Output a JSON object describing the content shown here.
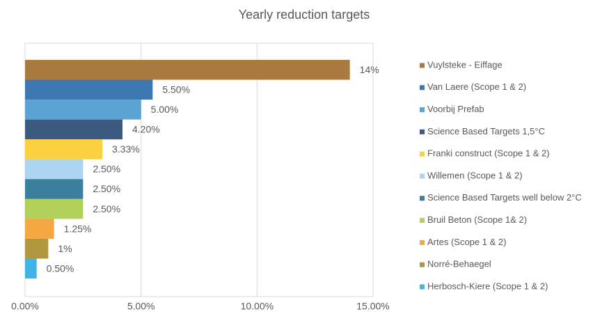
{
  "chart_data": {
    "type": "bar",
    "orientation": "horizontal",
    "title": "Yearly reduction targets",
    "xlim": [
      0,
      15
    ],
    "xticks": [
      {
        "value": 0,
        "label": "0.00%"
      },
      {
        "value": 5,
        "label": "5.00%"
      },
      {
        "value": 10,
        "label": "10.00%"
      },
      {
        "value": 15,
        "label": "15.00%"
      }
    ],
    "grid": true,
    "legend": "right",
    "series": [
      {
        "name": "Vuylsteke - Eiffage",
        "color": "#a97b3f",
        "values": [
          14
        ],
        "value_labels": [
          "14%"
        ]
      },
      {
        "name": "Van Laere (Scope 1 & 2)",
        "color": "#3e78b2",
        "values": [
          5.5
        ],
        "value_labels": [
          "5.50%"
        ]
      },
      {
        "name": "Voorbij Prefab",
        "color": "#5ba3d3",
        "values": [
          5
        ],
        "value_labels": [
          "5.00%"
        ]
      },
      {
        "name": "Science Based Targets 1,5°C",
        "color": "#3d5a80",
        "values": [
          4.2
        ],
        "value_labels": [
          "4.20%"
        ]
      },
      {
        "name": "Franki construct (Scope 1 & 2)",
        "color": "#fcd13f",
        "values": [
          3.33
        ],
        "value_labels": [
          "3.33%"
        ]
      },
      {
        "name": "Willemen (Scope 1 & 2)",
        "color": "#aad4ef",
        "values": [
          2.5
        ],
        "value_labels": [
          "2.50%"
        ]
      },
      {
        "name": "Science Based Targets well below 2°C",
        "color": "#3b7f9e",
        "values": [
          2.5
        ],
        "value_labels": [
          "2.50%"
        ]
      },
      {
        "name": "Bruil Beton (Scope 1& 2)",
        "color": "#b2d15a",
        "values": [
          2.5
        ],
        "value_labels": [
          "2.50%"
        ]
      },
      {
        "name": "Artes (Scope 1 & 2)",
        "color": "#f5a742",
        "values": [
          1.25
        ],
        "value_labels": [
          "1.25%"
        ]
      },
      {
        "name": "Norré-Behaegel",
        "color": "#b09840",
        "values": [
          1
        ],
        "value_labels": [
          "1%"
        ]
      },
      {
        "name": "Herbosch-Kiere (Scope 1 & 2)",
        "color": "#3fb4e6",
        "values": [
          0.5
        ],
        "value_labels": [
          "0.50%"
        ]
      }
    ]
  }
}
